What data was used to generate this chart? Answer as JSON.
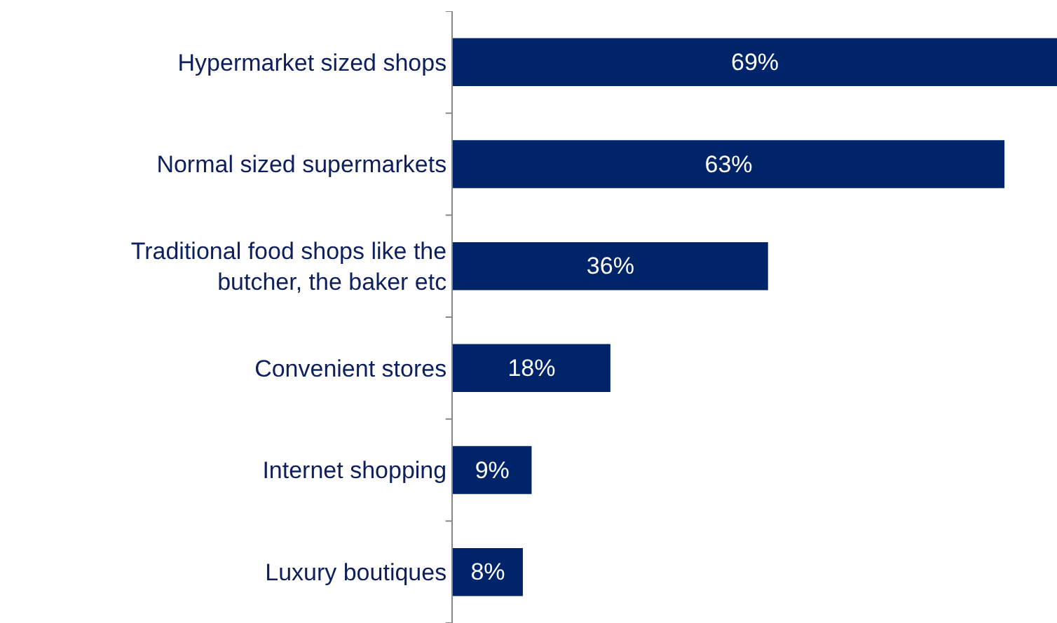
{
  "chart_data": {
    "type": "bar",
    "orientation": "horizontal",
    "categories": [
      "Hypermarket sized shops",
      "Normal sized supermarkets",
      "Traditional food shops like the butcher, the baker etc",
      "Convenient stores",
      "Internet shopping",
      "Luxury boutiques"
    ],
    "values": [
      69,
      63,
      36,
      18,
      9,
      8
    ],
    "value_labels": [
      "69%",
      "63%",
      "36%",
      "18%",
      "9%",
      "8%"
    ],
    "color": "#002469"
  }
}
